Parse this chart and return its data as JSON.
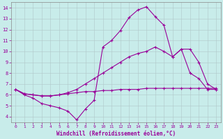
{
  "xlabel": "Windchill (Refroidissement éolien,°C)",
  "background_color": "#c8ecea",
  "line_color": "#990099",
  "grid_color": "#b0c8c8",
  "xlim": [
    -0.5,
    23.5
  ],
  "ylim": [
    3.5,
    14.5
  ],
  "xticks": [
    0,
    1,
    2,
    3,
    4,
    5,
    6,
    7,
    8,
    9,
    10,
    11,
    12,
    13,
    14,
    15,
    16,
    17,
    18,
    19,
    20,
    21,
    22,
    23
  ],
  "yticks": [
    4,
    5,
    6,
    7,
    8,
    9,
    10,
    11,
    12,
    13,
    14
  ],
  "line1_x": [
    0,
    1,
    2,
    3,
    4,
    5,
    6,
    7,
    8,
    9,
    10,
    11,
    12,
    13,
    14,
    15,
    16,
    17,
    18,
    19,
    20,
    21,
    22,
    23
  ],
  "line1_y": [
    6.5,
    6.0,
    5.7,
    5.2,
    5.0,
    4.8,
    4.5,
    3.7,
    4.7,
    5.5,
    10.4,
    11.0,
    11.9,
    13.1,
    13.8,
    14.1,
    13.2,
    12.4,
    9.5,
    10.2,
    8.0,
    7.5,
    6.5,
    6.5
  ],
  "line2_x": [
    0,
    1,
    2,
    3,
    4,
    5,
    6,
    7,
    8,
    9,
    10,
    11,
    12,
    13,
    14,
    15,
    16,
    17,
    18,
    19,
    20,
    21,
    22,
    23
  ],
  "line2_y": [
    6.5,
    6.1,
    6.0,
    5.9,
    5.9,
    6.0,
    6.2,
    6.5,
    7.0,
    7.5,
    8.0,
    8.5,
    9.0,
    9.5,
    9.8,
    10.0,
    10.4,
    10.0,
    9.5,
    10.2,
    10.2,
    9.0,
    7.0,
    6.5
  ],
  "line3_x": [
    0,
    1,
    2,
    3,
    4,
    5,
    6,
    7,
    8,
    9,
    10,
    11,
    12,
    13,
    14,
    15,
    16,
    17,
    18,
    19,
    20,
    21,
    22,
    23
  ],
  "line3_y": [
    6.5,
    6.1,
    6.0,
    5.9,
    5.9,
    6.0,
    6.1,
    6.2,
    6.3,
    6.3,
    6.4,
    6.4,
    6.5,
    6.5,
    6.5,
    6.6,
    6.6,
    6.6,
    6.6,
    6.6,
    6.6,
    6.6,
    6.6,
    6.6
  ],
  "marker1_x": [
    0,
    1,
    2,
    3,
    4,
    5,
    6,
    7,
    8,
    9,
    10,
    11,
    12,
    13,
    14,
    15,
    16,
    17,
    18,
    19,
    20,
    21,
    22,
    23
  ],
  "marker2_x": [
    0,
    2,
    4,
    6,
    8,
    10,
    12,
    14,
    16,
    18,
    20,
    22
  ],
  "marker3_x": [
    0,
    3,
    6,
    9,
    12,
    15,
    18,
    21,
    23
  ]
}
